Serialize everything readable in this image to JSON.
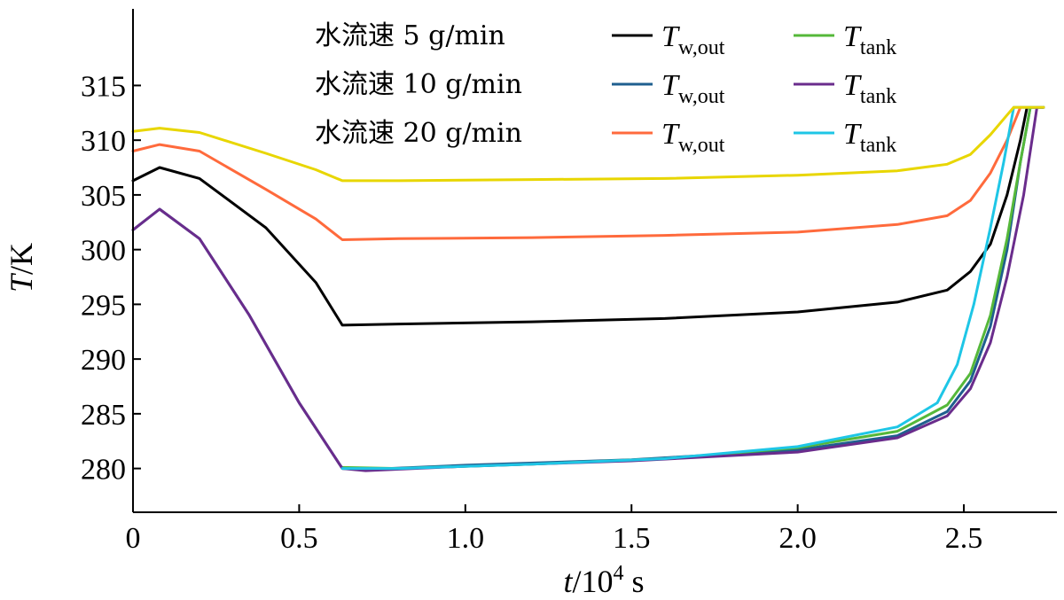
{
  "chart_data": {
    "type": "line",
    "xlabel": {
      "var": "t",
      "unit": "/10",
      "exp": "4",
      "suffix": " s"
    },
    "ylabel": {
      "var": "T",
      "unit": "/K"
    },
    "xlim": [
      0,
      2.78
    ],
    "ylim": [
      276,
      322
    ],
    "xticks": [
      0,
      0.5,
      1.0,
      1.5,
      2.0,
      2.5
    ],
    "xtick_labels": [
      "0",
      "0.5",
      "1.0",
      "1.5",
      "2.0",
      "2.5"
    ],
    "yticks": [
      280,
      285,
      290,
      295,
      300,
      305,
      310,
      315
    ],
    "ytick_labels": [
      "280",
      "285",
      "290",
      "295",
      "300",
      "305",
      "310",
      "315"
    ],
    "grid": false,
    "legend_position": "top",
    "legend_groups": [
      {
        "label": "水流速 5 g/min"
      },
      {
        "label": "水流速 10 g/min"
      },
      {
        "label": "水流速 20 g/min"
      }
    ],
    "series": [
      {
        "name": "T_w,out",
        "sym": "T",
        "sub": "w,out",
        "group": 0,
        "color": "#000000",
        "points": [
          [
            0,
            306.3
          ],
          [
            0.08,
            307.5
          ],
          [
            0.2,
            306.5
          ],
          [
            0.4,
            302.0
          ],
          [
            0.55,
            297.0
          ],
          [
            0.63,
            293.1
          ],
          [
            0.8,
            293.2
          ],
          [
            1.2,
            293.4
          ],
          [
            1.6,
            293.7
          ],
          [
            2.0,
            294.3
          ],
          [
            2.3,
            295.2
          ],
          [
            2.45,
            296.3
          ],
          [
            2.52,
            298.0
          ],
          [
            2.58,
            300.5
          ],
          [
            2.63,
            305.0
          ],
          [
            2.67,
            310.0
          ],
          [
            2.69,
            313.0
          ],
          [
            2.74,
            313.0
          ]
        ]
      },
      {
        "name": "T_w,out",
        "sym": "T",
        "sub": "w,out",
        "group": 1,
        "color": "#1f5f8f",
        "points": [
          [
            0,
            301.8
          ],
          [
            0.08,
            303.7
          ],
          [
            0.2,
            301.0
          ],
          [
            0.35,
            294.0
          ],
          [
            0.5,
            286.0
          ],
          [
            0.63,
            280.0
          ],
          [
            0.7,
            279.9
          ],
          [
            1.0,
            280.3
          ],
          [
            1.5,
            280.8
          ],
          [
            2.0,
            281.7
          ],
          [
            2.3,
            283.0
          ],
          [
            2.45,
            285.2
          ],
          [
            2.52,
            288.0
          ],
          [
            2.58,
            293.0
          ],
          [
            2.63,
            300.0
          ],
          [
            2.67,
            308.0
          ],
          [
            2.7,
            313.0
          ],
          [
            2.74,
            313.0
          ]
        ]
      },
      {
        "name": "T_w,out",
        "sym": "T",
        "sub": "w,out",
        "group": 2,
        "color": "#ff6a3c",
        "points": [
          [
            0,
            309.0
          ],
          [
            0.08,
            309.6
          ],
          [
            0.2,
            309.0
          ],
          [
            0.4,
            305.5
          ],
          [
            0.55,
            302.8
          ],
          [
            0.63,
            300.9
          ],
          [
            0.8,
            301.0
          ],
          [
            1.2,
            301.1
          ],
          [
            1.6,
            301.3
          ],
          [
            2.0,
            301.6
          ],
          [
            2.3,
            302.3
          ],
          [
            2.45,
            303.1
          ],
          [
            2.52,
            304.5
          ],
          [
            2.58,
            307.0
          ],
          [
            2.63,
            310.0
          ],
          [
            2.67,
            313.0
          ],
          [
            2.74,
            313.0
          ]
        ]
      },
      {
        "name": "T_tank",
        "sym": "T",
        "sub": "tank",
        "group": 0,
        "color": "#55b83a",
        "points": [
          [
            0.63,
            280.1
          ],
          [
            0.8,
            280.0
          ],
          [
            1.2,
            280.4
          ],
          [
            1.6,
            280.9
          ],
          [
            2.0,
            281.9
          ],
          [
            2.3,
            283.4
          ],
          [
            2.45,
            285.8
          ],
          [
            2.52,
            288.7
          ],
          [
            2.58,
            294.0
          ],
          [
            2.63,
            301.0
          ],
          [
            2.67,
            308.0
          ],
          [
            2.7,
            313.0
          ],
          [
            2.74,
            313.0
          ]
        ]
      },
      {
        "name": "T_tank",
        "sym": "T",
        "sub": "tank",
        "group": 1,
        "color": "#6a2c8c",
        "points": [
          [
            0,
            301.8
          ],
          [
            0.08,
            303.7
          ],
          [
            0.2,
            301.0
          ],
          [
            0.35,
            294.0
          ],
          [
            0.5,
            286.0
          ],
          [
            0.63,
            280.0
          ],
          [
            0.7,
            279.8
          ],
          [
            1.0,
            280.2
          ],
          [
            1.5,
            280.7
          ],
          [
            2.0,
            281.5
          ],
          [
            2.3,
            282.8
          ],
          [
            2.45,
            284.8
          ],
          [
            2.52,
            287.3
          ],
          [
            2.58,
            291.5
          ],
          [
            2.63,
            297.5
          ],
          [
            2.68,
            305.0
          ],
          [
            2.72,
            313.0
          ],
          [
            2.74,
            313.0
          ]
        ]
      },
      {
        "name": "T_tank",
        "sym": "T",
        "sub": "tank",
        "group": 2,
        "color": "#1ec6e6",
        "points": [
          [
            0.63,
            280.0
          ],
          [
            0.8,
            280.0
          ],
          [
            1.2,
            280.4
          ],
          [
            1.6,
            280.9
          ],
          [
            2.0,
            282.0
          ],
          [
            2.3,
            283.8
          ],
          [
            2.42,
            286.0
          ],
          [
            2.48,
            289.5
          ],
          [
            2.53,
            295.0
          ],
          [
            2.58,
            302.0
          ],
          [
            2.62,
            308.0
          ],
          [
            2.65,
            313.0
          ],
          [
            2.74,
            313.0
          ]
        ]
      },
      {
        "name": "",
        "sym": "",
        "sub": "",
        "group": -1,
        "color": "#e8d600",
        "points": [
          [
            0,
            310.8
          ],
          [
            0.08,
            311.1
          ],
          [
            0.2,
            310.7
          ],
          [
            0.4,
            308.8
          ],
          [
            0.55,
            307.3
          ],
          [
            0.63,
            306.3
          ],
          [
            0.8,
            306.3
          ],
          [
            1.2,
            306.4
          ],
          [
            1.6,
            306.5
          ],
          [
            2.0,
            306.8
          ],
          [
            2.3,
            307.2
          ],
          [
            2.45,
            307.8
          ],
          [
            2.52,
            308.7
          ],
          [
            2.58,
            310.5
          ],
          [
            2.63,
            312.3
          ],
          [
            2.65,
            313.0
          ],
          [
            2.74,
            313.0
          ]
        ]
      }
    ]
  }
}
